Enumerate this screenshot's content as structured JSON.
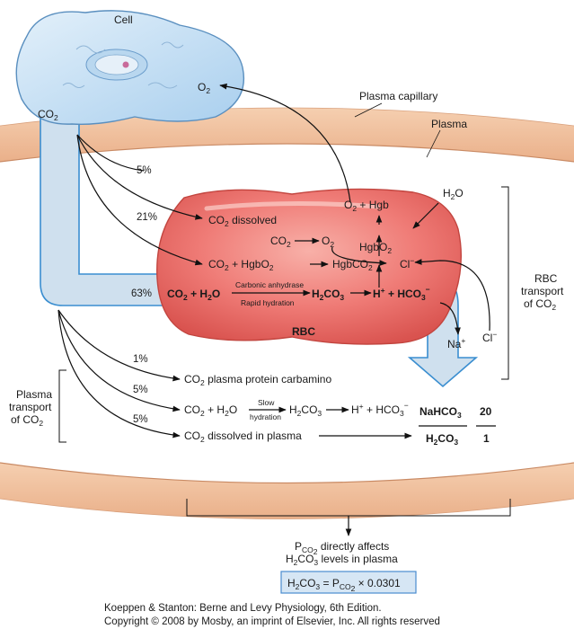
{
  "labels": {
    "cell": "Cell",
    "plasma_capillary": "Plasma capillary",
    "plasma": "Plasma",
    "rbc": "RBC",
    "rbc_transport": [
      "RBC",
      "transport",
      "of CO"
    ],
    "plasma_transport": [
      "Plasma",
      "transport",
      "of CO"
    ],
    "pco2_note": [
      " directly affects",
      "H",
      "CO",
      " levels in plasma"
    ]
  },
  "percentages": {
    "dissolved_rbc": "5%",
    "hgb_carbamino": "21%",
    "rbc_hydration": "63%",
    "protein_carbamino": "1%",
    "plasma_hydration": "5%",
    "dissolved_plasma": "5%"
  },
  "rbc_reactions": {
    "dissolved": " dissolved",
    "hgb": "Hgb",
    "carbonic_anhydrase": "Carbonic anhydrase",
    "rapid_hydration": "Rapid hydration",
    "cl": "Cl",
    "na": "Na"
  },
  "plasma_reactions": {
    "protein_carbamino": " plasma protein carbamino",
    "slow": "Slow",
    "hydration": "hydration",
    "dissolved_plasma": " dissolved in plasma",
    "ratio_numerator_label": "NaHCO",
    "ratio_denominator_label": "H",
    "ratio_numerator": "20",
    "ratio_denominator": "1"
  },
  "formula": {
    "factor": "× 0.0301"
  },
  "credit": {
    "line1": "Koeppen & Stanton: Berne and Levy Physiology, 6th Edition.",
    "line2": "Copyright © 2008 by Mosby, an imprint of Elsevier, Inc. All rights reserved"
  },
  "colors": {
    "capillary_wall": "#f3c4a2",
    "plasma": "#ffffff",
    "rbc_fill": "#ef7b76",
    "rbc_dark": "#d9534f",
    "cell_fill": "#cfe5f6",
    "flow_arrow": "#cfe0ee"
  }
}
